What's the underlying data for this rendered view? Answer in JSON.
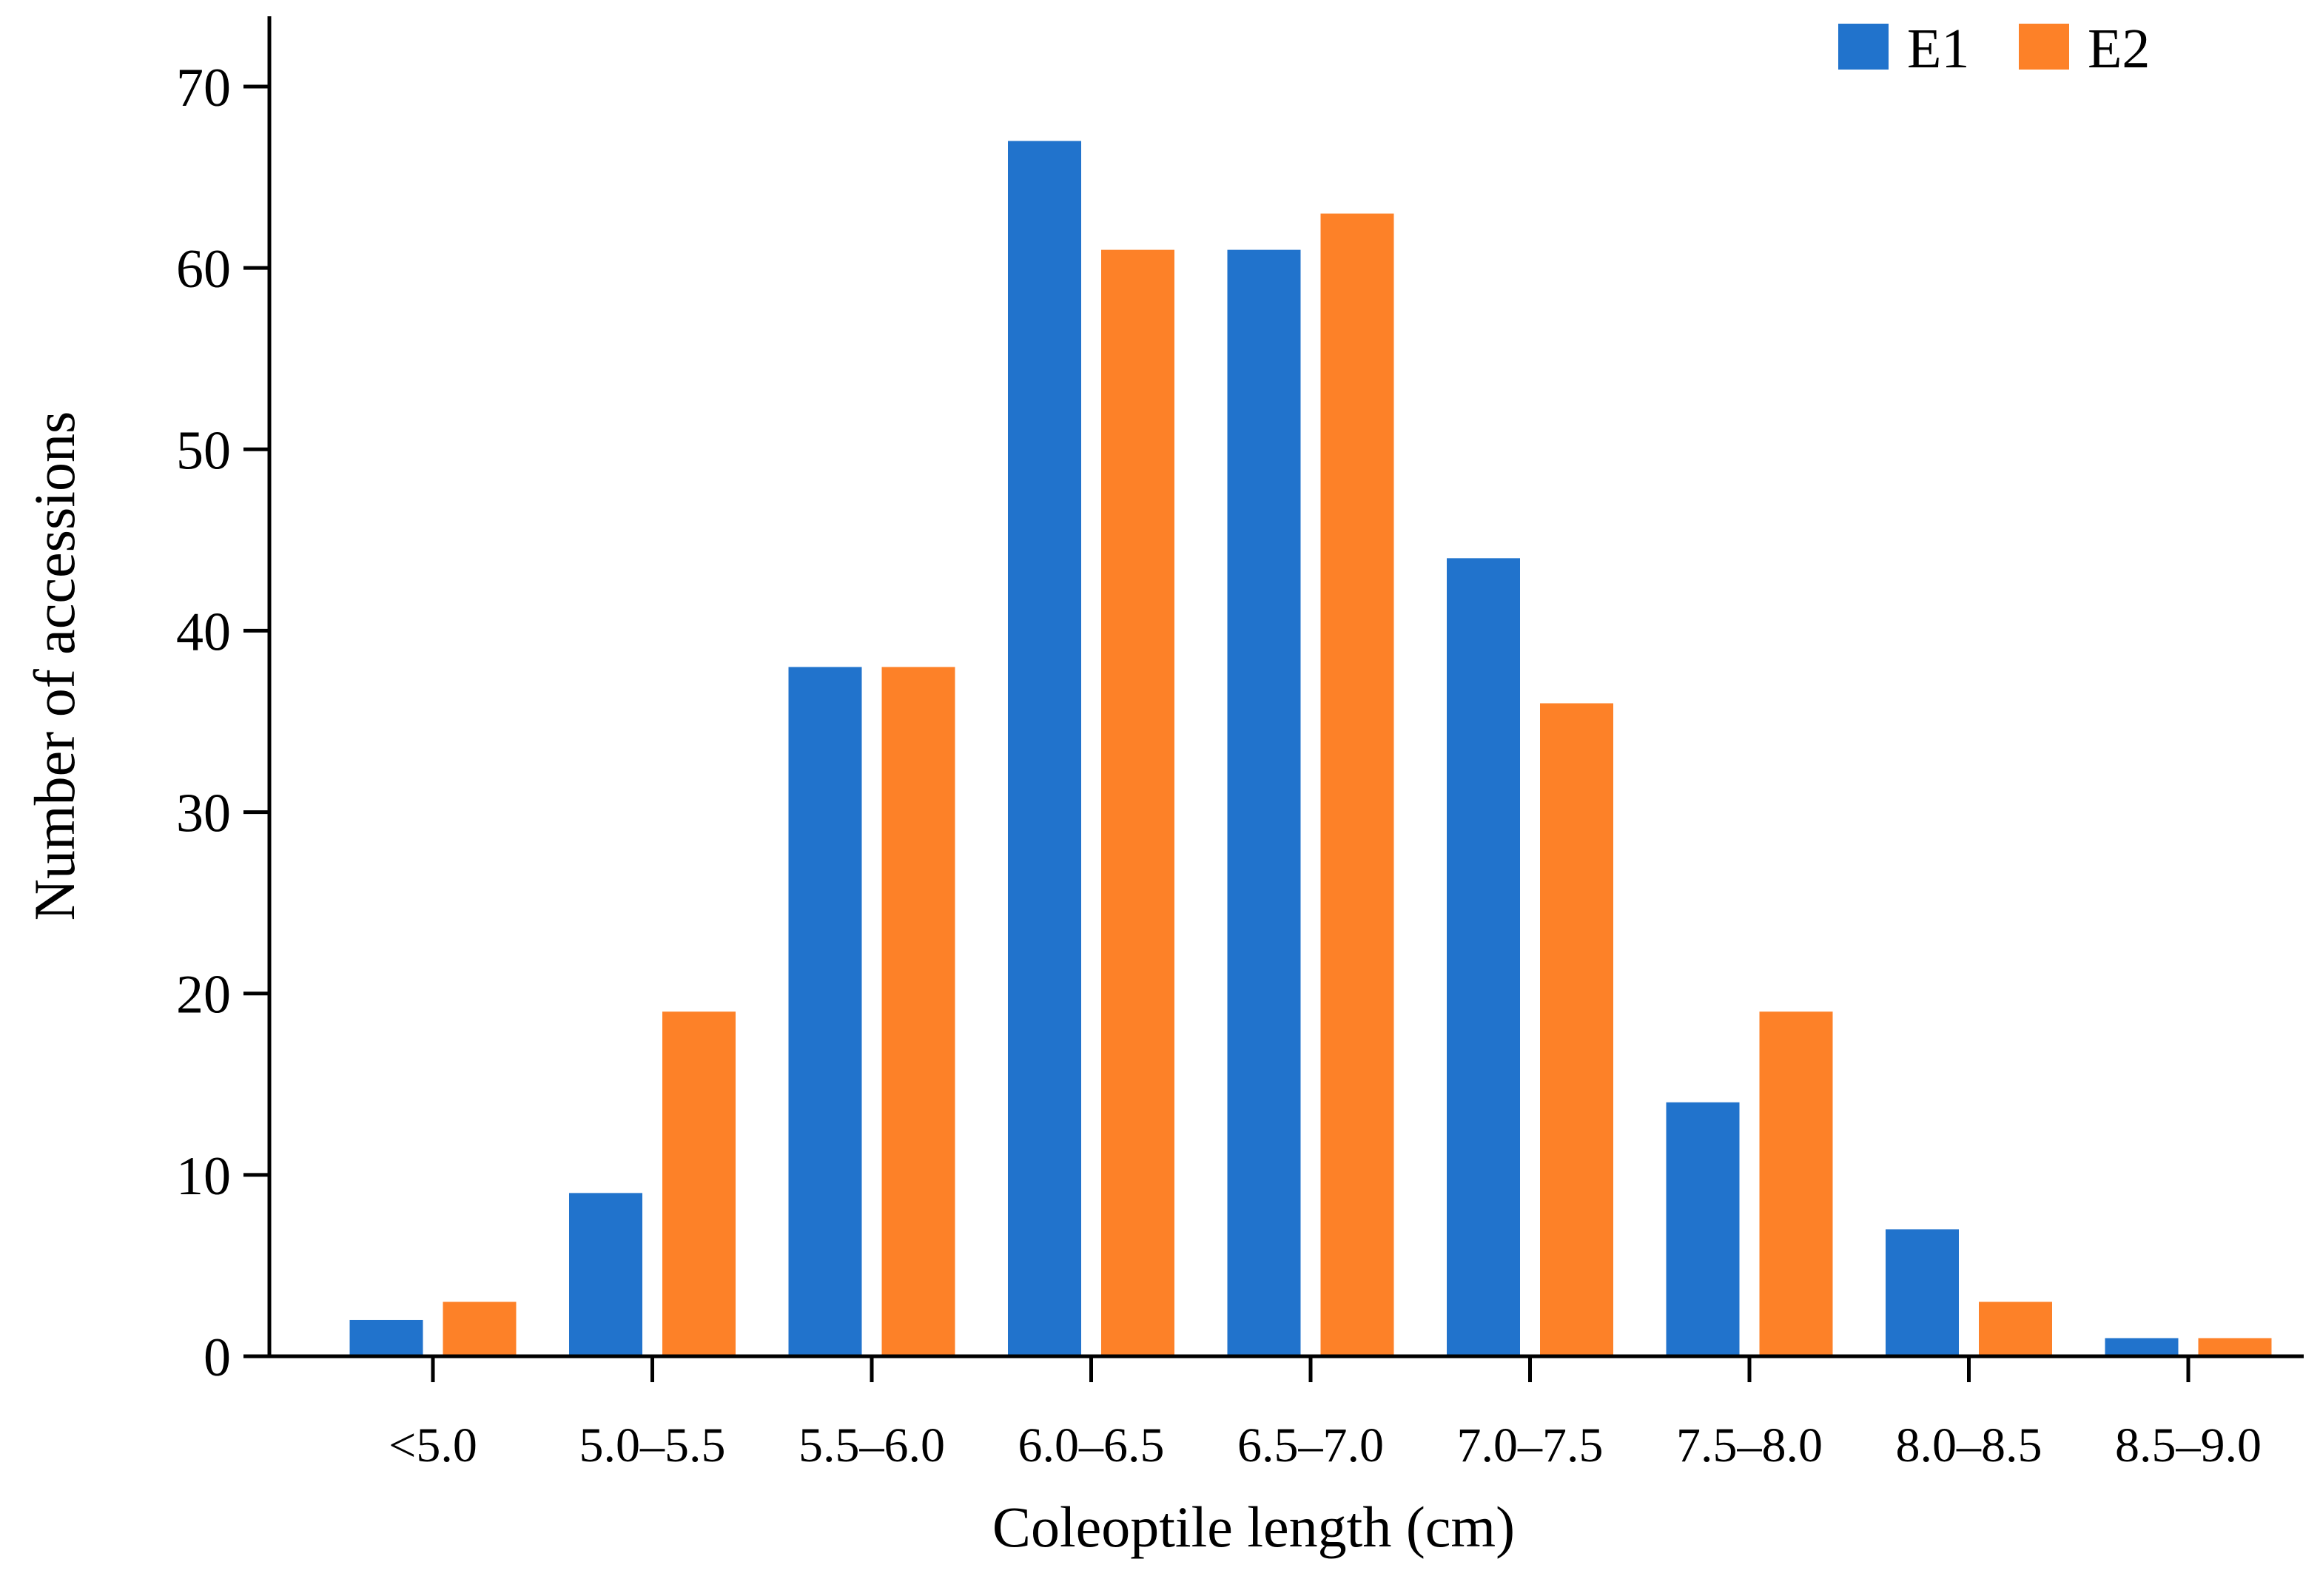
{
  "chart_data": {
    "type": "bar",
    "title": "",
    "xlabel": "Coleoptile length (cm)",
    "ylabel": "Number of accessions",
    "categories": [
      "<5.0",
      "5.0–5.5",
      "5.5–6.0",
      "6.0–6.5",
      "6.5–7.0",
      "7.0–7.5",
      "7.5–8.0",
      "8.0–8.5",
      "8.5–9.0"
    ],
    "series": [
      {
        "name": "E1",
        "color": "#2173cc",
        "values": [
          2,
          9,
          38,
          67,
          61,
          44,
          14,
          7,
          1
        ]
      },
      {
        "name": "E2",
        "color": "#fd8128",
        "values": [
          3,
          19,
          38,
          61,
          63,
          36,
          19,
          3,
          1
        ]
      }
    ],
    "ylim": [
      0,
      70
    ],
    "yticks": [
      0,
      10,
      20,
      30,
      40,
      50,
      60,
      70
    ],
    "grid": false,
    "legend_position": "top-right"
  }
}
